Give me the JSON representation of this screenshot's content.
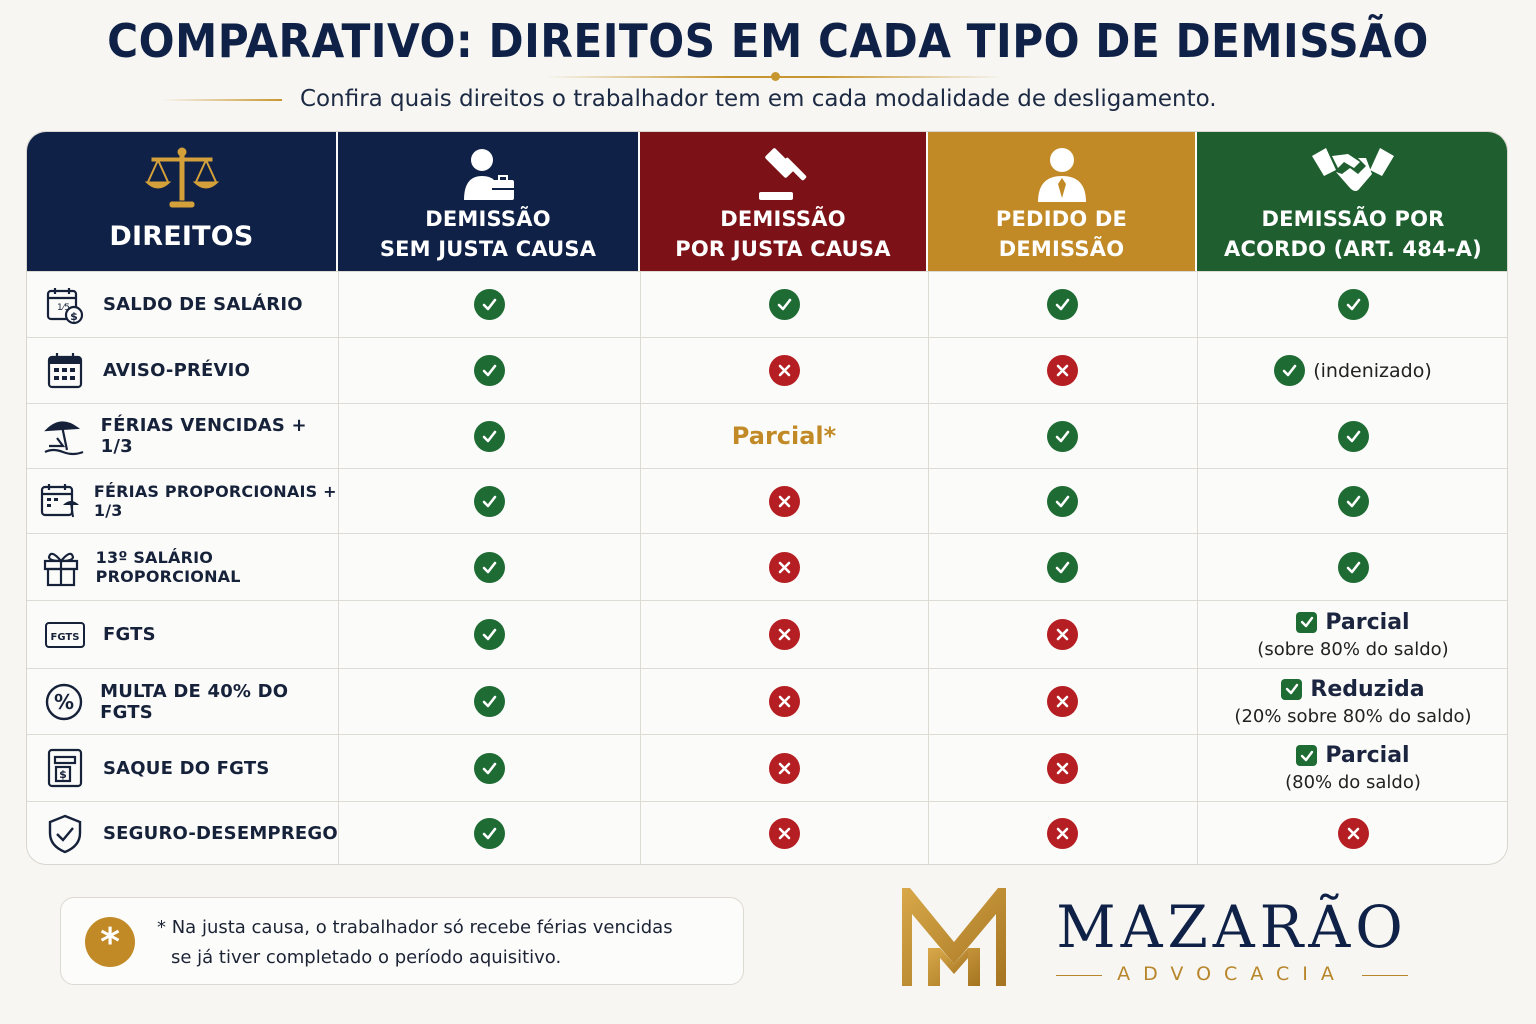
{
  "title": "COMPARATIVO: DIREITOS EM CADA TIPO DE DEMISSÃO",
  "subtitle": "Confira quais direitos o trabalhador tem em cada modalidade de desligamento.",
  "colors": {
    "navy": "#0f2147",
    "red": "#7c1218",
    "gold": "#c18a26",
    "green": "#1f5f2f",
    "check": "#1f6b34",
    "cross": "#b51e22"
  },
  "columns": [
    {
      "label": "DIREITOS",
      "icon": "scales-icon",
      "color": "#0f2147"
    },
    {
      "label": "DEMISSÃO\nSEM JUSTA CAUSA",
      "icon": "worker-briefcase-icon",
      "color": "#0f2147"
    },
    {
      "label": "DEMISSÃO\nPOR JUSTA CAUSA",
      "icon": "gavel-icon",
      "color": "#7c1218"
    },
    {
      "label": "PEDIDO DE\nDEMISSÃO",
      "icon": "person-tie-icon",
      "color": "#c18a26"
    },
    {
      "label": "DEMISSÃO POR\nACORDO (ART. 484-A)",
      "icon": "handshake-icon",
      "color": "#1f5f2f"
    }
  ],
  "rows": [
    {
      "label": "SALDO DE SALÁRIO",
      "icon": "calendar-money-icon",
      "values": [
        {
          "type": "check"
        },
        {
          "type": "check"
        },
        {
          "type": "check"
        },
        {
          "type": "check"
        }
      ]
    },
    {
      "label": "AVISO-PRÉVIO",
      "icon": "calendar-icon",
      "values": [
        {
          "type": "check"
        },
        {
          "type": "cross"
        },
        {
          "type": "cross"
        },
        {
          "type": "check",
          "note": "(indenizado)"
        }
      ]
    },
    {
      "label": "FÉRIAS VENCIDAS + 1/3",
      "icon": "beach-icon",
      "values": [
        {
          "type": "check"
        },
        {
          "type": "text",
          "text": "Parcial*"
        },
        {
          "type": "check"
        },
        {
          "type": "check"
        }
      ]
    },
    {
      "label": "FÉRIAS PROPORCIONAIS + 1/3",
      "icon": "calendar-beach-icon",
      "values": [
        {
          "type": "check"
        },
        {
          "type": "cross"
        },
        {
          "type": "check"
        },
        {
          "type": "check"
        }
      ]
    },
    {
      "label": "13º SALÁRIO PROPORCIONAL",
      "icon": "gift-icon",
      "values": [
        {
          "type": "check"
        },
        {
          "type": "cross"
        },
        {
          "type": "check"
        },
        {
          "type": "check"
        }
      ]
    },
    {
      "label": "FGTS",
      "icon": "fgts-card-icon",
      "values": [
        {
          "type": "check"
        },
        {
          "type": "cross"
        },
        {
          "type": "cross"
        },
        {
          "type": "partial",
          "title": "Parcial",
          "detail": "(sobre 80% do saldo)"
        }
      ]
    },
    {
      "label": "MULTA DE 40% DO FGTS",
      "icon": "percent-icon",
      "values": [
        {
          "type": "check"
        },
        {
          "type": "cross"
        },
        {
          "type": "cross"
        },
        {
          "type": "partial",
          "title": "Reduzida",
          "detail": "(20% sobre 80% do saldo)"
        }
      ]
    },
    {
      "label": "SAQUE DO FGTS",
      "icon": "atm-icon",
      "values": [
        {
          "type": "check"
        },
        {
          "type": "cross"
        },
        {
          "type": "cross"
        },
        {
          "type": "partial",
          "title": "Parcial",
          "detail": "(80% do saldo)"
        }
      ]
    },
    {
      "label": "SEGURO-DESEMPREGO",
      "icon": "shield-check-icon",
      "values": [
        {
          "type": "check"
        },
        {
          "type": "cross"
        },
        {
          "type": "cross"
        },
        {
          "type": "cross"
        }
      ]
    }
  ],
  "footnote": {
    "symbol": "*",
    "line1": "* Na justa causa, o trabalhador só recebe férias vencidas",
    "line2": "se já tiver completado o período aquisitivo."
  },
  "brand": {
    "name": "MAZARÃO",
    "tagline": "ADVOCACIA",
    "logo_letter": "M"
  }
}
